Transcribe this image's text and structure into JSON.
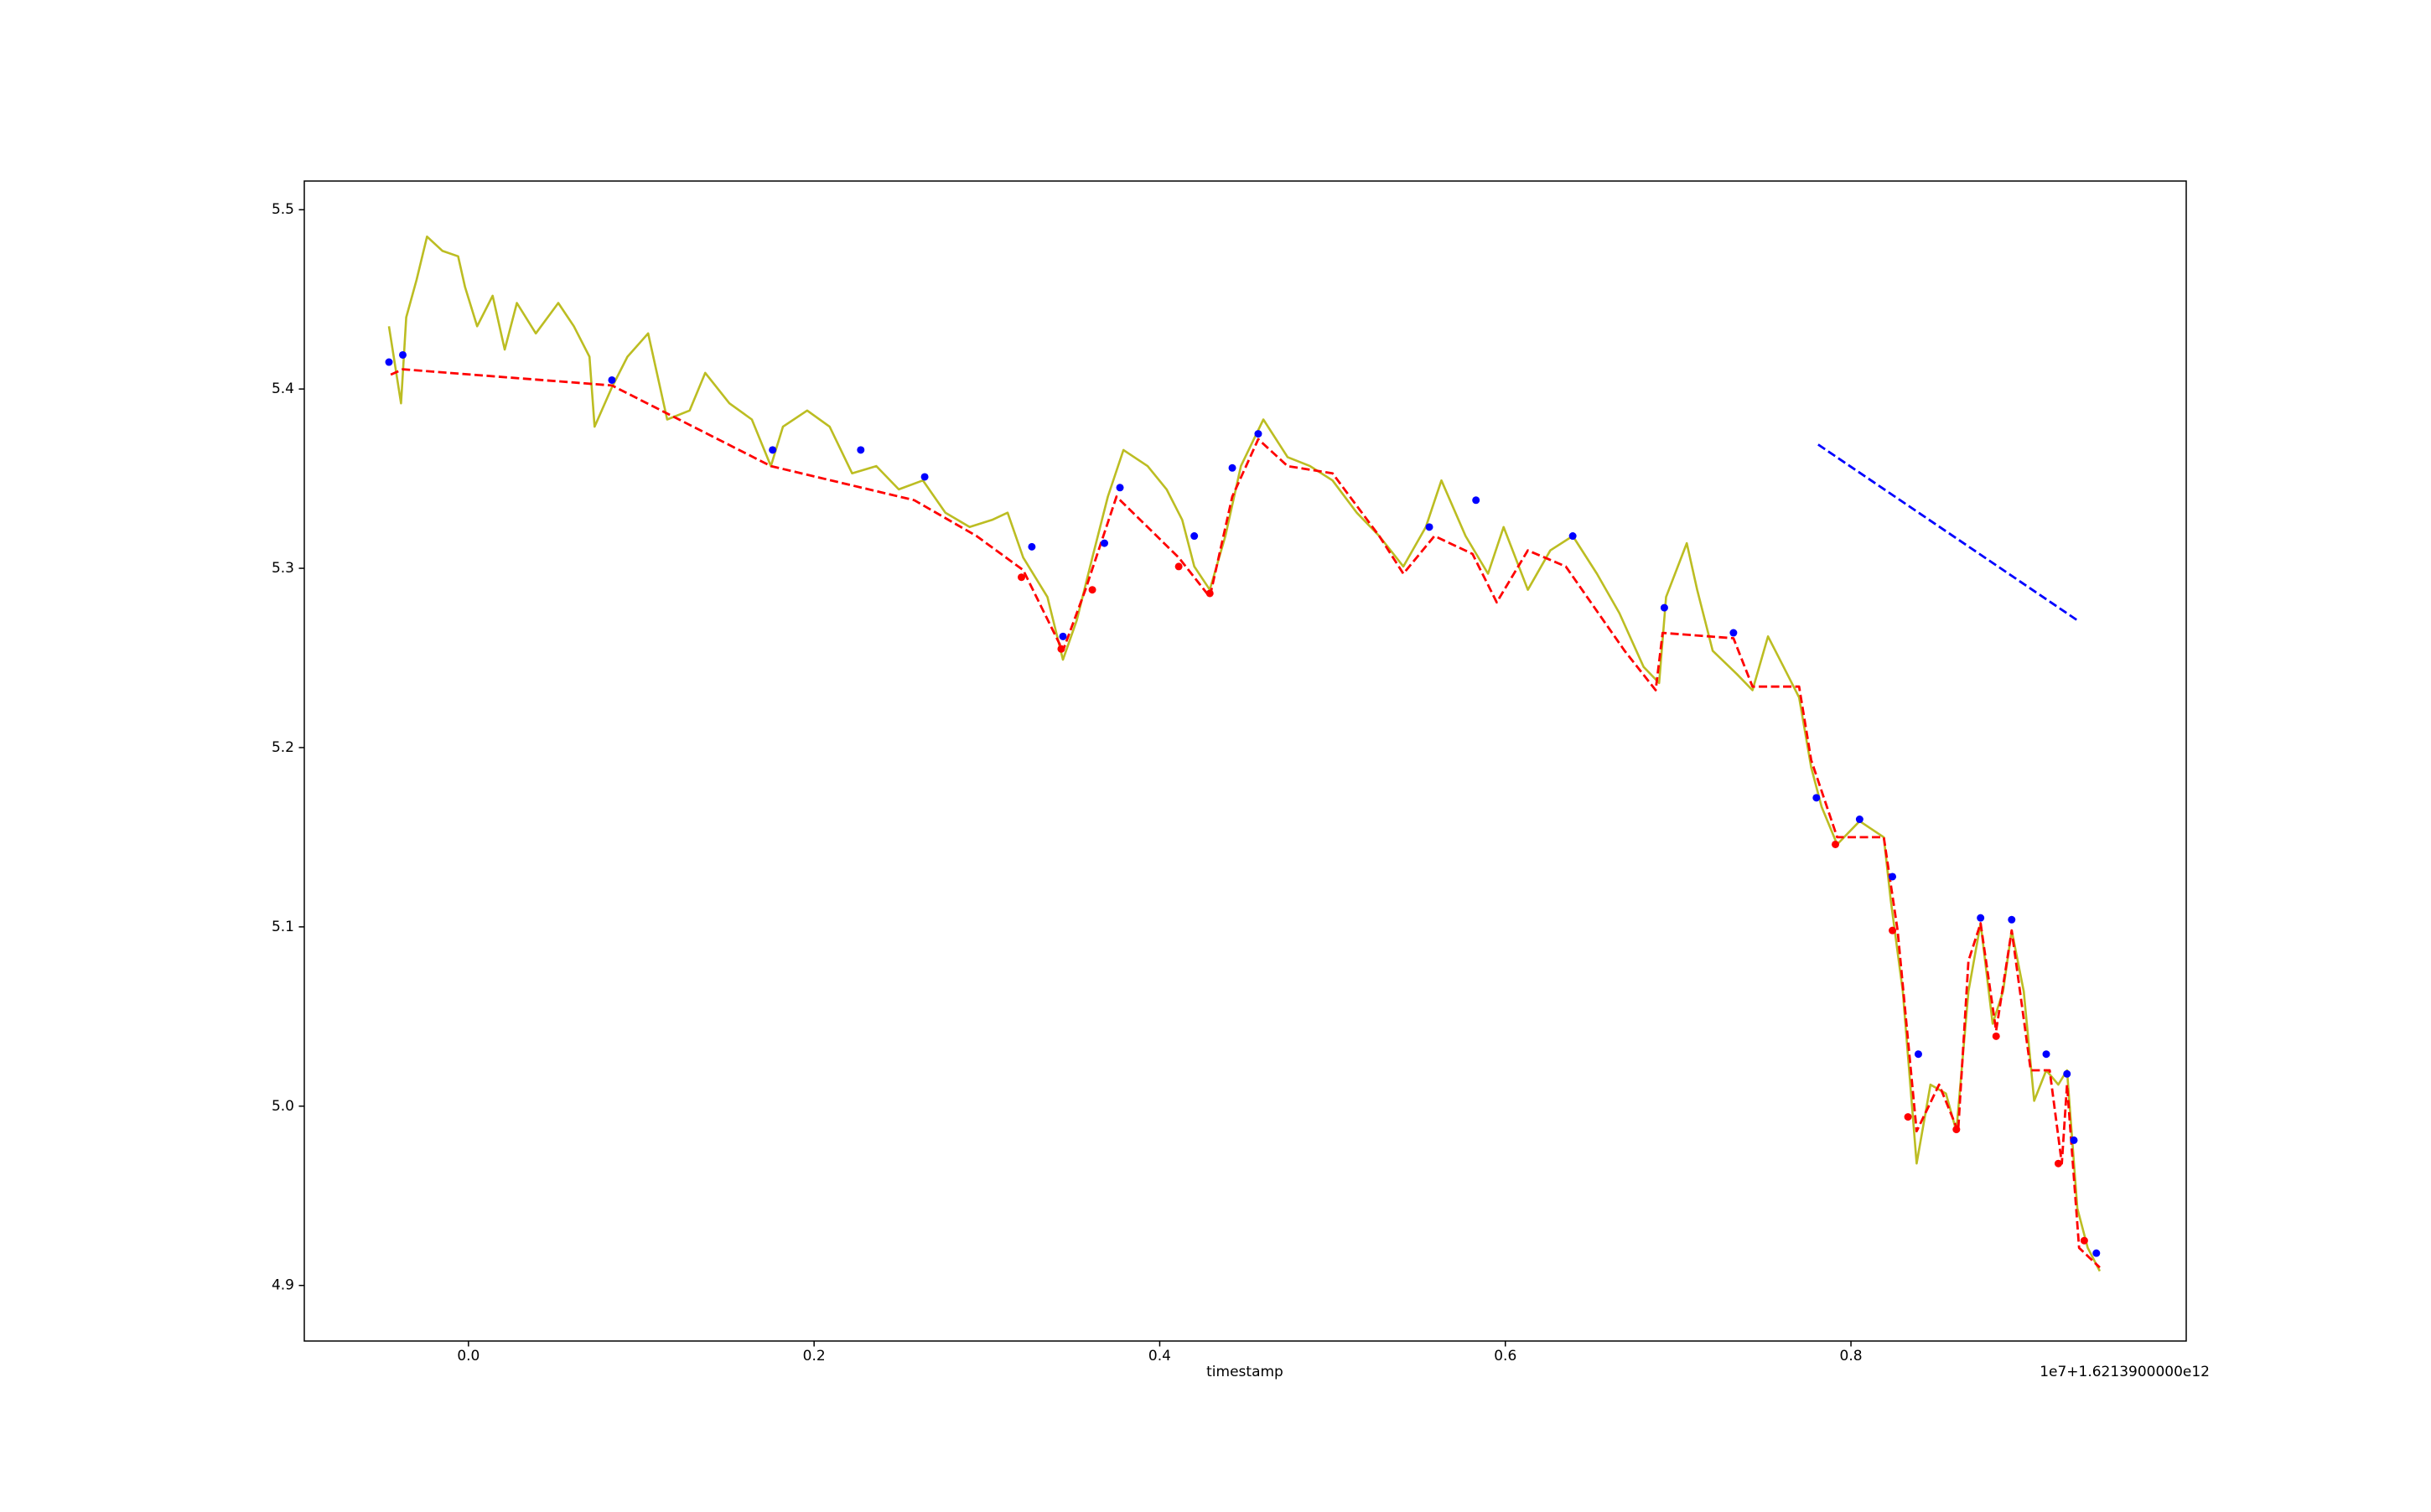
{
  "chart_data": {
    "type": "line",
    "xlabel": "timestamp",
    "x_offset_label": "1e7+1.6213900000e12",
    "xlim": [
      -0.095,
      0.994
    ],
    "ylim": [
      4.869,
      5.516
    ],
    "xticks": [
      {
        "value": 0,
        "label": "0.0"
      },
      {
        "value": 0.2,
        "label": "0.2"
      },
      {
        "value": 0.4,
        "label": "0.4"
      },
      {
        "value": 0.6,
        "label": "0.6"
      },
      {
        "value": 0.8,
        "label": "0.8"
      }
    ],
    "yticks": [
      4.9,
      {
        "value": 5,
        "label": "5.0"
      },
      5.1,
      5.2,
      5.3,
      5.4,
      5.5
    ],
    "grid": false,
    "series": [
      {
        "color": "#bcbd22",
        "linestyle": "solid",
        "marker": "none",
        "x": [
          -0.046,
          -0.039,
          -0.036,
          -0.03,
          -0.024,
          -0.015,
          -0.006,
          -0.002,
          0.005,
          0.014,
          0.021,
          0.028,
          0.039,
          0.052,
          0.061,
          0.07,
          0.073,
          0.083,
          0.092,
          0.104,
          0.115,
          0.128,
          0.137,
          0.151,
          0.164,
          0.175,
          0.182,
          0.196,
          0.209,
          0.222,
          0.236,
          0.249,
          0.263,
          0.276,
          0.29,
          0.303,
          0.312,
          0.321,
          0.335,
          0.344,
          0.352,
          0.361,
          0.37,
          0.379,
          0.393,
          0.404,
          0.413,
          0.42,
          0.429,
          0.438,
          0.447,
          0.46,
          0.474,
          0.487,
          0.5,
          0.514,
          0.527,
          0.541,
          0.554,
          0.563,
          0.577,
          0.59,
          0.599,
          0.613,
          0.626,
          0.639,
          0.653,
          0.666,
          0.68,
          0.689,
          0.693,
          0.705,
          0.711,
          0.72,
          0.734,
          0.743,
          0.752,
          0.761,
          0.77,
          0.777,
          0.783,
          0.792,
          0.805,
          0.819,
          0.823,
          0.83,
          0.838,
          0.846,
          0.855,
          0.861,
          0.868,
          0.875,
          0.882,
          0.888,
          0.893,
          0.9,
          0.906,
          0.913,
          0.92,
          0.925,
          0.931,
          0.937,
          0.944
        ],
        "values": [
          5.435,
          5.392,
          5.44,
          5.461,
          5.485,
          5.477,
          5.474,
          5.457,
          5.435,
          5.452,
          5.422,
          5.448,
          5.431,
          5.448,
          5.435,
          5.418,
          5.379,
          5.401,
          5.418,
          5.431,
          5.383,
          5.388,
          5.409,
          5.392,
          5.383,
          5.357,
          5.379,
          5.388,
          5.379,
          5.353,
          5.357,
          5.344,
          5.349,
          5.331,
          5.323,
          5.327,
          5.331,
          5.306,
          5.284,
          5.249,
          5.271,
          5.306,
          5.34,
          5.366,
          5.357,
          5.344,
          5.327,
          5.301,
          5.288,
          5.318,
          5.357,
          5.383,
          5.362,
          5.357,
          5.349,
          5.331,
          5.318,
          5.301,
          5.323,
          5.349,
          5.318,
          5.297,
          5.323,
          5.288,
          5.31,
          5.318,
          5.297,
          5.275,
          5.245,
          5.236,
          5.284,
          5.314,
          5.288,
          5.254,
          5.241,
          5.232,
          5.262,
          5.245,
          5.228,
          5.189,
          5.167,
          5.146,
          5.159,
          5.15,
          5.115,
          5.064,
          4.968,
          5.012,
          5.007,
          4.986,
          5.064,
          5.102,
          5.046,
          5.064,
          5.098,
          5.064,
          5.003,
          5.02,
          5.012,
          5.02,
          4.943,
          4.921,
          4.908
        ]
      },
      {
        "color": "#ff0000",
        "linestyle": "dashed",
        "marker": "none",
        "x": [
          -0.045,
          -0.038,
          0.083,
          0.175,
          0.258,
          0.294,
          0.321,
          0.344,
          0.357,
          0.375,
          0.411,
          0.429,
          0.442,
          0.457,
          0.474,
          0.5,
          0.527,
          0.541,
          0.559,
          0.581,
          0.595,
          0.613,
          0.635,
          0.669,
          0.687,
          0.691,
          0.732,
          0.743,
          0.77,
          0.777,
          0.792,
          0.819,
          0.827,
          0.838,
          0.851,
          0.862,
          0.868,
          0.875,
          0.884,
          0.893,
          0.904,
          0.915,
          0.922,
          0.925,
          0.932,
          0.944
        ],
        "values": [
          5.408,
          5.411,
          5.402,
          5.357,
          5.338,
          5.318,
          5.299,
          5.254,
          5.288,
          5.34,
          5.306,
          5.284,
          5.34,
          5.372,
          5.357,
          5.353,
          5.318,
          5.297,
          5.318,
          5.308,
          5.281,
          5.31,
          5.301,
          5.254,
          5.232,
          5.264,
          5.261,
          5.234,
          5.234,
          5.193,
          5.15,
          5.15,
          5.098,
          4.986,
          5.012,
          4.986,
          5.081,
          5.102,
          5.042,
          5.098,
          5.02,
          5.02,
          4.968,
          5.012,
          4.921,
          4.91
        ]
      },
      {
        "color": "#0000ff",
        "linestyle": "none",
        "marker": "o",
        "x": [
          -0.046,
          -0.038,
          0.083,
          0.176,
          0.227,
          0.264,
          0.326,
          0.344,
          0.368,
          0.377,
          0.42,
          0.442,
          0.457,
          0.556,
          0.583,
          0.639,
          0.692,
          0.732,
          0.78,
          0.805,
          0.824,
          0.839,
          0.875,
          0.893,
          0.913,
          0.925,
          0.929,
          0.942
        ],
        "values": [
          5.415,
          5.419,
          5.405,
          5.366,
          5.366,
          5.351,
          5.312,
          5.262,
          5.314,
          5.345,
          5.318,
          5.356,
          5.375,
          5.323,
          5.338,
          5.318,
          5.278,
          5.264,
          5.172,
          5.16,
          5.128,
          5.029,
          5.105,
          5.104,
          5.029,
          5.018,
          4.981,
          4.918
        ]
      },
      {
        "color": "#ff0000",
        "linestyle": "none",
        "marker": "o",
        "x": [
          0.32,
          0.343,
          0.361,
          0.411,
          0.429,
          0.791,
          0.824,
          0.833,
          0.861,
          0.884,
          0.92,
          0.935
        ],
        "values": [
          5.295,
          5.255,
          5.288,
          5.301,
          5.286,
          5.146,
          5.098,
          4.994,
          4.987,
          5.039,
          4.968,
          4.925
        ]
      },
      {
        "color": "#0000ff",
        "linestyle": "dashed",
        "marker": "none",
        "x": [
          0.781,
          0.931
        ],
        "values": [
          5.369,
          5.271
        ]
      }
    ]
  }
}
